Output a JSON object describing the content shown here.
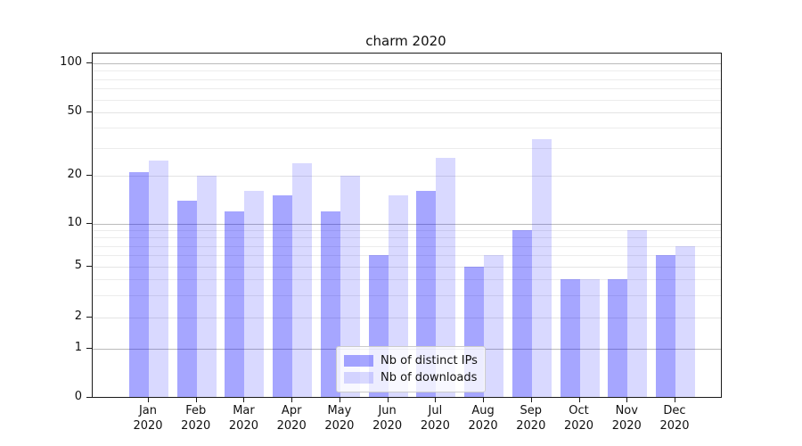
{
  "chart_data": {
    "type": "bar",
    "title": "charm 2020",
    "x": {
      "months": [
        "Jan",
        "Feb",
        "Mar",
        "Apr",
        "May",
        "Jun",
        "Jul",
        "Aug",
        "Sep",
        "Oct",
        "Nov",
        "Dec"
      ],
      "year": "2020"
    },
    "series": [
      {
        "name": "Nb of distinct IPs",
        "color": "rgba(0,0,255,0.35)",
        "color_hex": "#a6a6ff",
        "values": [
          21,
          14,
          12,
          15,
          12,
          6,
          16,
          5,
          9,
          4,
          4,
          6
        ]
      },
      {
        "name": "Nb of downloads",
        "color": "rgba(0,0,255,0.15)",
        "color_hex": "#d9d9ff",
        "values": [
          25,
          20,
          16,
          24,
          20,
          15,
          26,
          6,
          34,
          4,
          9,
          7
        ]
      }
    ],
    "y_axis": {
      "scale": "log above 1, linear 0-1",
      "tick_labels": [
        0,
        1,
        2,
        5,
        10,
        20,
        50,
        100
      ],
      "power_gridlines": [
        1,
        10,
        100
      ],
      "minor_gridlines": [
        3,
        4,
        6,
        7,
        8,
        9,
        30,
        40,
        60,
        70,
        80,
        90
      ],
      "range": [
        0,
        120
      ]
    },
    "legend_position": "lower center",
    "grid": true
  }
}
